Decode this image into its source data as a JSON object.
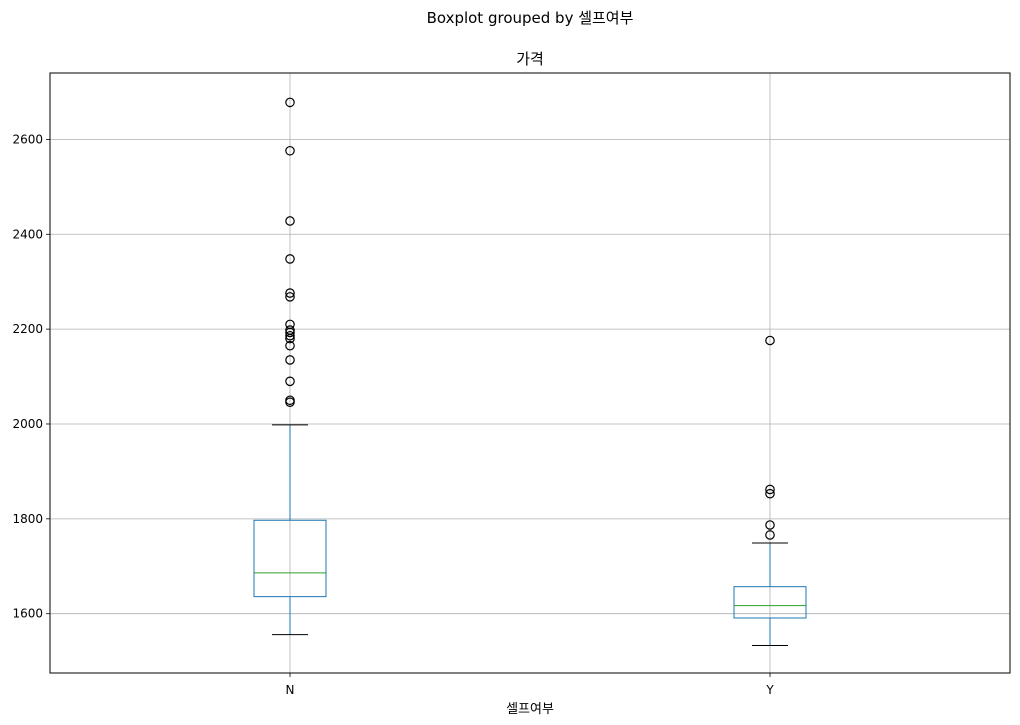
{
  "chart_data": {
    "type": "boxplot",
    "suptitle": "Boxplot grouped by 셀프여부",
    "title": "가격",
    "xlabel": "셀프여부",
    "ylabel": "",
    "ylim": [
      1475,
      2740
    ],
    "yticks": [
      1600,
      1800,
      2000,
      2200,
      2400,
      2600
    ],
    "grid": true,
    "colors": {
      "box": "#1f77b4",
      "median": "#2ca02c",
      "whisker": "#1f77b4",
      "cap": "#000000",
      "flier": "#000000",
      "grid": "#b0b0b0"
    },
    "categories": [
      "N",
      "Y"
    ],
    "boxes": [
      {
        "category": "N",
        "whislo": 1556,
        "q1": 1636,
        "median": 1686,
        "q3": 1797,
        "whishi": 1998,
        "fliers": [
          2678,
          2576,
          2428,
          2348,
          2276,
          2268,
          2210,
          2198,
          2193,
          2186,
          2180,
          2165,
          2135,
          2090,
          2050,
          2046
        ]
      },
      {
        "category": "Y",
        "whislo": 1533,
        "q1": 1591,
        "median": 1617,
        "q3": 1657,
        "whishi": 1749,
        "fliers": [
          2176,
          1862,
          1853,
          1787,
          1766
        ]
      }
    ]
  }
}
